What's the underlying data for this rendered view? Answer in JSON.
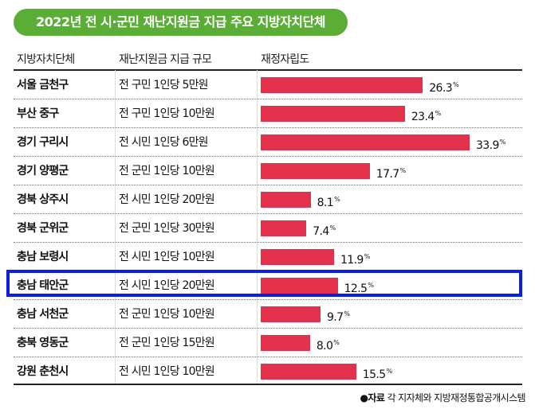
{
  "title": "2022년 전 시·군민 재난지원금 지급 주요 지방자치단체",
  "headers": {
    "region": "지방자치단체",
    "scale": "재난지원금 지급 규모",
    "ratio": "재정자립도"
  },
  "source": {
    "bullet": "●",
    "label": "자료",
    "text": "각 지자체와 지방재정통합공개시스템"
  },
  "colors": {
    "title_bg": "#5aad35",
    "bar": "#e3304b",
    "highlight": "#0a1ee8"
  },
  "chart_data": {
    "type": "bar",
    "orientation": "horizontal",
    "title": "2022년 전 시·군민 재난지원금 지급 주요 지방자치단체",
    "unit": "%",
    "categories": [
      "서울 금천구",
      "부산 중구",
      "경기 구리시",
      "경기 양평군",
      "경북 상주시",
      "경북 군위군",
      "충남 보령시",
      "충남 태안군",
      "충남 서천군",
      "충북 영동군",
      "강원 춘천시"
    ],
    "scale_text": [
      "전 구민 1인당 5만원",
      "전 구민 1인당 10만원",
      "전 시민 1인당 6만원",
      "전 군민 1인당 10만원",
      "전 시민 1인당 20만원",
      "전 군민 1인당 30만원",
      "전 시민 1인당 10만원",
      "전 시민 1인당 20만원",
      "전 군민 1인당 10만원",
      "전 군민 1인당 15만원",
      "전 시민 1인당 10만원"
    ],
    "values": [
      26.3,
      23.4,
      33.9,
      17.7,
      8.1,
      7.4,
      11.9,
      12.5,
      9.7,
      8.0,
      15.5
    ],
    "value_labels": [
      "26.3",
      "23.4",
      "33.9",
      "17.7",
      "8.1",
      "7.4",
      "11.9",
      "12.5",
      "9.7",
      "8.0",
      "15.5"
    ],
    "highlighted": "충남 태안군",
    "xlim": [
      0,
      34
    ]
  }
}
